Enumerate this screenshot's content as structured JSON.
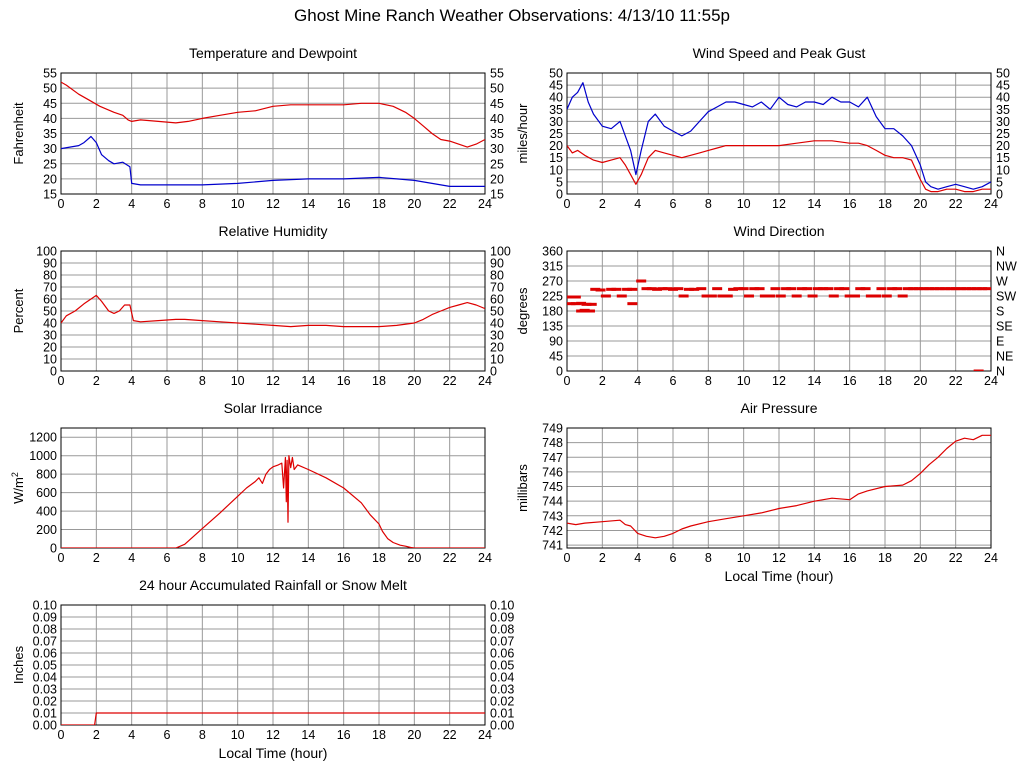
{
  "page": {
    "title": "Ghost Mine Ranch Weather Observations: 4/13/10 11:55p"
  },
  "colors": {
    "red": "#dd0000",
    "blue": "#0000cc",
    "grid": "#999999",
    "axis": "#000000"
  },
  "chart_data": [
    {
      "type": "line",
      "title": "Temperature and Dewpoint",
      "xlabel": "",
      "ylabel": "Fahrenheit",
      "xlim": [
        0,
        24
      ],
      "ylim": [
        15,
        55
      ],
      "yticks": [
        15,
        20,
        25,
        30,
        35,
        40,
        45,
        50,
        55
      ],
      "right_ticks": [
        "15",
        "20",
        "25",
        "30",
        "35",
        "40",
        "45",
        "50",
        "55"
      ],
      "series": [
        {
          "color": "#dd0000",
          "x": [
            0,
            0.3,
            1,
            1.6,
            2.2,
            3,
            3.5,
            3.8,
            4,
            4.5,
            5.5,
            6.5,
            7.2,
            8,
            9,
            10,
            11,
            12,
            13,
            14,
            15,
            16,
            17,
            18,
            18.8,
            19.5,
            20,
            20.5,
            21,
            21.5,
            22,
            22.5,
            23,
            23.5,
            24
          ],
          "y": [
            52,
            51,
            48,
            46,
            44,
            42,
            41,
            39.5,
            39,
            39.5,
            39,
            38.5,
            39,
            40,
            41,
            42,
            42.5,
            44,
            44.5,
            44.5,
            44.5,
            44.5,
            45,
            45,
            44,
            42,
            40,
            37.5,
            35,
            33,
            32.5,
            31.5,
            30.5,
            31.5,
            33
          ]
        },
        {
          "color": "#0000cc",
          "x": [
            0,
            0.5,
            1,
            1.3,
            1.7,
            2,
            2.3,
            2.7,
            3,
            3.5,
            3.9,
            4,
            4.5,
            6,
            8,
            10,
            12,
            14,
            16,
            18,
            19,
            20,
            21,
            22,
            23,
            24
          ],
          "y": [
            30,
            30.5,
            31,
            32,
            34,
            32,
            28,
            26,
            25,
            25.5,
            24,
            18.5,
            18,
            18,
            18,
            18.5,
            19.5,
            20,
            20,
            20.5,
            20,
            19.5,
            18.5,
            17.5,
            17.5,
            17.5
          ]
        }
      ]
    },
    {
      "type": "line",
      "title": "Wind Speed and Peak Gust",
      "xlabel": "",
      "ylabel": "miles/hour",
      "xlim": [
        0,
        24
      ],
      "ylim": [
        0,
        50
      ],
      "yticks": [
        0,
        5,
        10,
        15,
        20,
        25,
        30,
        35,
        40,
        45,
        50
      ],
      "right_ticks": [
        "0",
        "5",
        "10",
        "15",
        "20",
        "25",
        "30",
        "35",
        "40",
        "45",
        "50"
      ],
      "series": [
        {
          "color": "#0000cc",
          "x": [
            0,
            0.3,
            0.6,
            0.9,
            1.2,
            1.5,
            2,
            2.5,
            3,
            3.3,
            3.6,
            3.9,
            4.2,
            4.6,
            5,
            5.5,
            6,
            6.5,
            7,
            7.5,
            8,
            8.5,
            9,
            9.5,
            10,
            10.5,
            11,
            11.5,
            12,
            12.5,
            13,
            13.5,
            14,
            14.5,
            15,
            15.5,
            16,
            16.5,
            17,
            17.5,
            18,
            18.5,
            19,
            19.5,
            20,
            20.3,
            20.6,
            21,
            21.5,
            22,
            22.5,
            23,
            23.5,
            24
          ],
          "y": [
            35,
            40,
            42,
            46,
            38,
            33,
            28,
            27,
            30,
            24,
            18,
            8,
            18,
            30,
            33,
            28,
            26,
            24,
            26,
            30,
            34,
            36,
            38,
            38,
            37,
            36,
            38,
            35,
            40,
            37,
            36,
            38,
            38,
            37,
            40,
            38,
            38,
            36,
            40,
            32,
            27,
            27,
            24,
            20,
            12,
            5,
            3,
            2,
            3,
            4,
            3,
            2,
            3,
            5
          ]
        },
        {
          "color": "#dd0000",
          "x": [
            0,
            0.3,
            0.6,
            1,
            1.5,
            2,
            2.5,
            3,
            3.3,
            3.6,
            3.9,
            4.2,
            4.6,
            5,
            5.5,
            6,
            6.5,
            7,
            7.5,
            8,
            8.5,
            9,
            10,
            11,
            12,
            13,
            14,
            15,
            16,
            16.5,
            17,
            17.5,
            18,
            18.5,
            19,
            19.5,
            20,
            20.3,
            20.6,
            21,
            21.5,
            22,
            22.5,
            23,
            23.5,
            24
          ],
          "y": [
            20,
            17,
            18,
            16,
            14,
            13,
            14,
            15,
            12,
            8,
            4,
            8,
            15,
            18,
            17,
            16,
            15,
            16,
            17,
            18,
            19,
            20,
            20,
            20,
            20,
            21,
            22,
            22,
            21,
            21,
            20,
            18,
            16,
            15,
            15,
            14,
            6,
            2,
            1,
            1,
            2,
            2,
            1,
            1,
            2,
            2
          ]
        }
      ]
    },
    {
      "type": "line",
      "title": "Relative Humidity",
      "xlabel": "",
      "ylabel": "Percent",
      "xlim": [
        0,
        24
      ],
      "ylim": [
        0,
        100
      ],
      "yticks": [
        0,
        10,
        20,
        30,
        40,
        50,
        60,
        70,
        80,
        90,
        100
      ],
      "right_ticks": [
        "0",
        "10",
        "20",
        "30",
        "40",
        "50",
        "60",
        "70",
        "80",
        "90",
        "100"
      ],
      "series": [
        {
          "color": "#dd0000",
          "x": [
            0,
            0.3,
            0.8,
            1.3,
            1.7,
            2,
            2.3,
            2.7,
            3,
            3.3,
            3.6,
            3.9,
            4.1,
            4.5,
            5.5,
            6.5,
            7,
            8,
            9,
            10,
            11,
            12,
            13,
            14,
            15,
            16,
            17,
            18,
            19,
            20,
            20.5,
            21,
            21.5,
            22,
            22.5,
            23,
            23.5,
            24
          ],
          "y": [
            40,
            46,
            50,
            56,
            60,
            63,
            58,
            50,
            48,
            50,
            55,
            55,
            42,
            41,
            42,
            43,
            43,
            42,
            41,
            40,
            39,
            38,
            37,
            38,
            38,
            37,
            37,
            37,
            38,
            40,
            43,
            47,
            50,
            53,
            55,
            57,
            55,
            52
          ]
        }
      ]
    },
    {
      "type": "scatter",
      "title": "Wind Direction",
      "xlabel": "",
      "ylabel": "degrees",
      "xlim": [
        0,
        24
      ],
      "ylim": [
        0,
        360
      ],
      "yticks": [
        0,
        45,
        90,
        135,
        180,
        225,
        270,
        315,
        360
      ],
      "right_ticks": [
        "N",
        "NE",
        "E",
        "SE",
        "S",
        "SW",
        "W",
        "NW",
        "N"
      ],
      "series": [
        {
          "color": "#dd0000",
          "x": [
            0.2,
            0.5,
            0.8,
            1.1,
            1.4,
            0.2,
            0.5,
            0.8,
            1.0,
            1.3,
            1.6,
            1.9,
            2.2,
            2.5,
            2.8,
            3.1,
            3.4,
            3.7,
            3.7,
            4.2,
            4.5,
            4.8,
            5.1,
            5.4,
            5.7,
            6.0,
            6.3,
            6.6,
            6.9,
            7.2,
            7.6,
            7.9,
            8.2,
            8.5,
            8.8,
            9.1,
            9.4,
            9.7,
            10.0,
            10.3,
            10.6,
            10.9,
            11.2,
            11.5,
            11.8,
            12.1,
            12.4,
            12.7,
            13.0,
            13.3,
            13.6,
            13.9,
            14.2,
            14.5,
            14.8,
            15.1,
            15.4,
            15.7,
            16.0,
            16.3,
            16.6,
            16.9,
            17.2,
            17.5,
            17.8,
            18.1,
            18.4,
            18.7,
            19.0,
            19.3,
            19.6,
            19.9,
            20.2,
            20.5,
            20.8,
            21.1,
            21.4,
            21.7,
            22.0,
            22.3,
            22.6,
            22.9,
            23.2,
            23.5,
            23.8,
            23.3
          ],
          "y": [
            202,
            202,
            203,
            200,
            200,
            222,
            222,
            180,
            182,
            180,
            245,
            243,
            225,
            245,
            245,
            225,
            245,
            245,
            202,
            270,
            247,
            247,
            245,
            247,
            247,
            245,
            247,
            225,
            245,
            245,
            247,
            225,
            225,
            247,
            225,
            225,
            245,
            247,
            247,
            225,
            247,
            247,
            225,
            225,
            247,
            225,
            247,
            247,
            225,
            247,
            247,
            225,
            247,
            247,
            247,
            225,
            247,
            247,
            225,
            225,
            247,
            247,
            225,
            225,
            247,
            225,
            247,
            247,
            225,
            247,
            247,
            247,
            247,
            247,
            247,
            247,
            247,
            247,
            247,
            247,
            247,
            247,
            247,
            247,
            247,
            0
          ]
        }
      ]
    },
    {
      "type": "line",
      "title": "Solar Irradiance",
      "xlabel": "",
      "ylabel": "W/m",
      "ylabel_sup": "2",
      "xlim": [
        0,
        24
      ],
      "ylim": [
        0,
        1300
      ],
      "yticks": [
        0,
        200,
        400,
        600,
        800,
        1000,
        1200
      ],
      "right_ticks": [],
      "series": [
        {
          "color": "#dd0000",
          "x": [
            0,
            6.5,
            7,
            8,
            9,
            10,
            10.5,
            11,
            11.2,
            11.4,
            11.6,
            11.8,
            12,
            12.3,
            12.5,
            12.6,
            12.7,
            12.75,
            12.8,
            12.85,
            12.9,
            13,
            13.1,
            13.2,
            13.4,
            14,
            15,
            16,
            17,
            17.5,
            18,
            18.2,
            18.5,
            18.8,
            19.2,
            19.5,
            19.8,
            20,
            24
          ],
          "y": [
            0,
            0,
            40,
            210,
            380,
            560,
            650,
            720,
            760,
            700,
            800,
            850,
            880,
            900,
            920,
            650,
            980,
            500,
            950,
            280,
            1000,
            870,
            980,
            850,
            900,
            850,
            760,
            650,
            490,
            360,
            260,
            180,
            100,
            60,
            30,
            20,
            5,
            0,
            0
          ]
        }
      ]
    },
    {
      "type": "line",
      "title": "Air Pressure",
      "xlabel": "Local Time (hour)",
      "ylabel": "millibars",
      "xlim": [
        0,
        24
      ],
      "ylim": [
        740.8,
        749
      ],
      "yticks": [
        741,
        742,
        743,
        744,
        745,
        746,
        747,
        748,
        749
      ],
      "right_ticks": [],
      "series": [
        {
          "color": "#dd0000",
          "x": [
            0,
            0.5,
            1,
            2,
            3,
            3.3,
            3.6,
            4,
            4.5,
            5,
            5.5,
            6,
            6.5,
            7,
            8,
            9,
            10,
            11,
            12,
            13,
            14,
            15,
            16,
            16.5,
            17,
            18,
            19,
            19.5,
            20,
            20.5,
            21,
            21.5,
            22,
            22.5,
            23,
            23.5,
            24
          ],
          "y": [
            742.5,
            742.4,
            742.5,
            742.6,
            742.7,
            742.4,
            742.3,
            741.8,
            741.6,
            741.5,
            741.6,
            741.8,
            742.1,
            742.3,
            742.6,
            742.8,
            743,
            743.2,
            743.5,
            743.7,
            744,
            744.2,
            744.1,
            744.5,
            744.7,
            745,
            745.1,
            745.4,
            745.9,
            746.5,
            747,
            747.6,
            748.1,
            748.3,
            748.2,
            748.5,
            748.5
          ]
        }
      ]
    },
    {
      "type": "line",
      "title": "24 hour Accumulated Rainfall or Snow Melt",
      "xlabel": "Local Time (hour)",
      "ylabel": "Inches",
      "xlim": [
        0,
        24
      ],
      "ylim": [
        0,
        0.1
      ],
      "yticks": [
        0,
        0.01,
        0.02,
        0.03,
        0.04,
        0.05,
        0.06,
        0.07,
        0.08,
        0.09,
        0.1
      ],
      "right_ticks": [
        "0.00",
        "0.01",
        "0.02",
        "0.03",
        "0.04",
        "0.05",
        "0.06",
        "0.07",
        "0.08",
        "0.09",
        "0.10"
      ],
      "series": [
        {
          "color": "#dd0000",
          "x": [
            0,
            1.9,
            2.0,
            24
          ],
          "y": [
            0,
            0,
            0.01,
            0.01
          ]
        }
      ]
    }
  ]
}
